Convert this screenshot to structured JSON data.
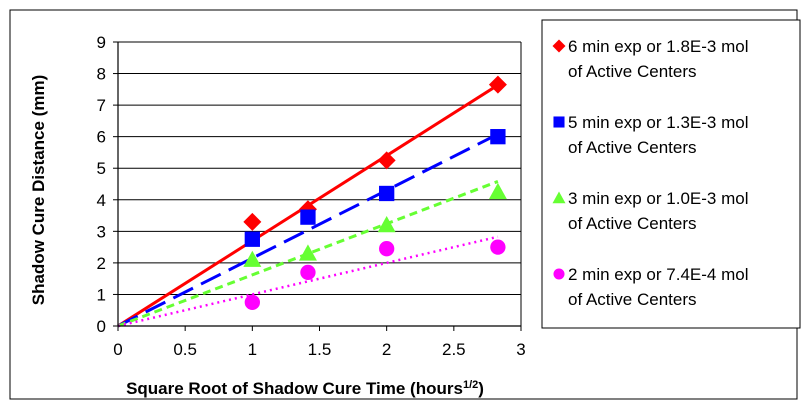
{
  "chart_data": {
    "type": "scatter",
    "title": "",
    "xlabel": "Square Root of Shadow Cure Time (hours",
    "xlabel_sup": "1/2",
    "xlabel_end": ")",
    "ylabel": "Shadow Cure Distance (mm)",
    "xlim": [
      0,
      3
    ],
    "ylim": [
      0,
      9
    ],
    "x_ticks": [
      "0",
      "0.5",
      "1",
      "1.5",
      "2",
      "2.5",
      "3"
    ],
    "y_ticks": [
      "0",
      "1",
      "2",
      "3",
      "4",
      "5",
      "6",
      "7",
      "8",
      "9"
    ],
    "grid": "horizontal",
    "legend_position": "right",
    "series": [
      {
        "name_line1": "6 min exp or 1.8E-3 mol",
        "name_line2": "of Active Centers",
        "marker": "diamond",
        "color": "#FF0000",
        "line_style": "solid",
        "x": [
          1.0,
          1.414,
          2.0,
          2.828
        ],
        "y": [
          3.3,
          3.7,
          5.25,
          7.65
        ],
        "trend_slope": 2.7
      },
      {
        "name_line1": "5 min exp or 1.3E-3 mol",
        "name_line2": "of Active Centers",
        "marker": "square",
        "color": "#0000FF",
        "line_style": "dashed",
        "x": [
          1.0,
          1.414,
          2.0,
          2.828
        ],
        "y": [
          2.75,
          3.45,
          4.2,
          6.0
        ],
        "trend_slope": 2.15
      },
      {
        "name_line1": "3 min exp or 1.0E-3 mol",
        "name_line2": "of Active Centers",
        "marker": "triangle",
        "color": "#66FF33",
        "line_style": "short-dashed",
        "x": [
          1.0,
          1.414,
          2.0,
          2.828
        ],
        "y": [
          2.1,
          2.3,
          3.2,
          4.25
        ],
        "trend_slope": 1.62
      },
      {
        "name_line1": "2 min exp or 7.4E-4 mol",
        "name_line2": "of Active Centers",
        "marker": "circle",
        "color": "#FF00FF",
        "line_style": "dotted",
        "x": [
          1.0,
          1.414,
          2.0,
          2.828
        ],
        "y": [
          0.75,
          1.7,
          2.45,
          2.5
        ],
        "trend_slope": 1.0
      }
    ]
  }
}
